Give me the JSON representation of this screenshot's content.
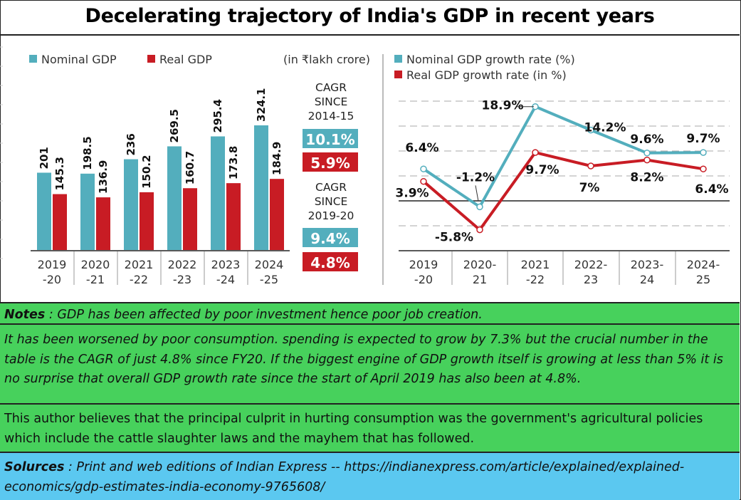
{
  "title": "Decelerating trajectory of India's GDP in recent years",
  "colors": {
    "nominal": "#53aebd",
    "real": "#c81c24",
    "notes_bg": "#47d15c",
    "sources_bg": "#5bc8f0"
  },
  "chart_data": [
    {
      "type": "bar",
      "unit_label": "(in ₹lakh crore)",
      "categories": [
        [
          "2019",
          "-20"
        ],
        [
          "2020",
          "-21"
        ],
        [
          "2021",
          "-22"
        ],
        [
          "2022",
          "-23"
        ],
        [
          "2023",
          "-24"
        ],
        [
          "2024",
          "-25"
        ]
      ],
      "series": [
        {
          "name": "Nominal GDP",
          "values": [
            201,
            198.5,
            236,
            269.5,
            295.4,
            324.1
          ]
        },
        {
          "name": "Real GDP",
          "values": [
            145.3,
            136.9,
            150.2,
            160.7,
            173.8,
            184.9
          ]
        }
      ],
      "ylim": [
        0,
        340
      ],
      "cagr": [
        {
          "label": [
            "CAGR",
            "SINCE",
            "2014-15"
          ],
          "nominal": "10.1%",
          "real": "5.9%"
        },
        {
          "label": [
            "CAGR",
            "SINCE",
            "2019-20"
          ],
          "nominal": "9.4%",
          "real": "4.8%"
        }
      ]
    },
    {
      "type": "line",
      "categories": [
        [
          "2019",
          "-20"
        ],
        [
          "2020-",
          "21"
        ],
        [
          "2021",
          "-22"
        ],
        [
          "2022-",
          "23"
        ],
        [
          "2023-",
          "24"
        ],
        [
          "2024-",
          "25"
        ]
      ],
      "series": [
        {
          "name": "Nominal GDP growth rate (%)",
          "values": [
            6.4,
            -1.2,
            18.9,
            14.2,
            9.6,
            9.7
          ],
          "labels": [
            "6.4%",
            "-1.2%",
            "18.9%",
            "14.2%",
            "9.6%",
            "9.7%"
          ]
        },
        {
          "name": "Real GDP growth rate (in %)",
          "values": [
            3.9,
            -5.8,
            9.7,
            7,
            8.2,
            6.4
          ],
          "labels": [
            "3.9%",
            "-5.8%",
            "9.7%",
            "7%",
            "8.2%",
            "6.4%"
          ]
        }
      ],
      "ylim": [
        -10,
        20
      ]
    }
  ],
  "notes": {
    "label": "Notes",
    "p1": " : GDP has been affected by poor investment hence poor job creation.",
    "p2": "It has been worsened by poor consumption. spending is expected to grow by 7.3% but the crucial number in the table is the CAGR of just 4.8% since FY20. If the biggest engine of GDP growth itself is growing at less than 5% it is no surprise that overall GDP growth rate since the start of April 2019 has also been at 4.8%.",
    "p3": "This author believes that the principal culprit in hurting consumption was the government's agricultural policies which include the cattle slaughter laws and the mayhem that has followed."
  },
  "sources": {
    "label": "Solurces",
    "text": " : Print and web editions of Indian Express -- https://indianexpress.com/article/explained/explained-economics/gdp-estimates-india-economy-9765608/"
  }
}
